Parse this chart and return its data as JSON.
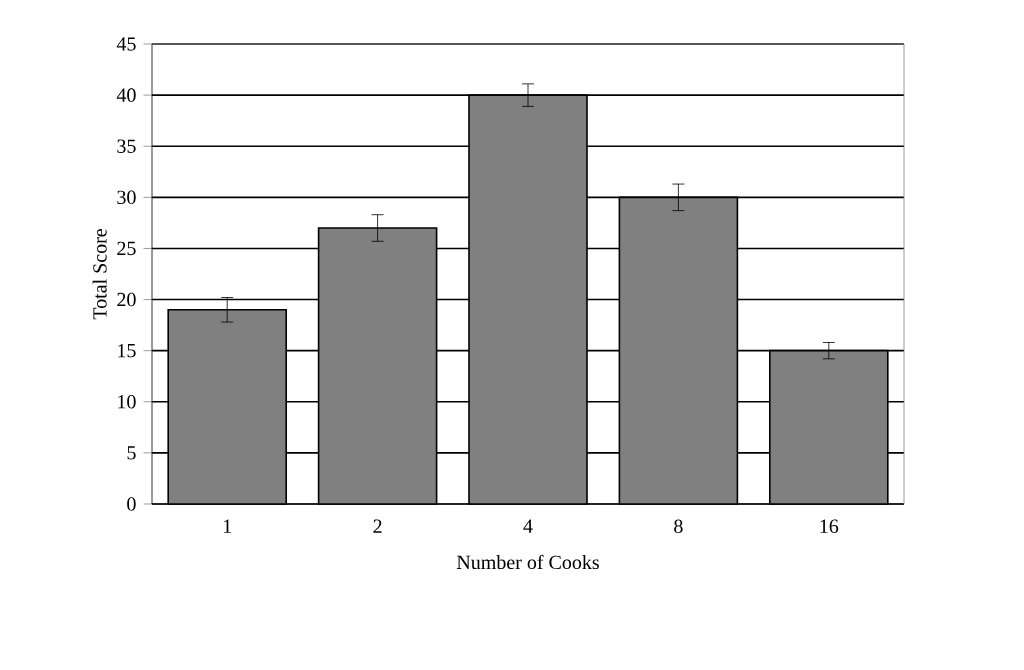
{
  "chart_data": {
    "type": "bar",
    "xlabel": "Number of Cooks",
    "ylabel": "Total Score",
    "categories": [
      "1",
      "2",
      "4",
      "8",
      "16"
    ],
    "values": [
      19,
      27,
      40,
      30,
      15
    ],
    "errors": [
      1.2,
      1.3,
      1.1,
      1.3,
      0.8
    ],
    "color": "#808080",
    "ylim": [
      0,
      45
    ],
    "yticks": [
      0,
      5,
      10,
      15,
      20,
      25,
      30,
      35,
      40,
      45
    ],
    "grid": "y"
  }
}
